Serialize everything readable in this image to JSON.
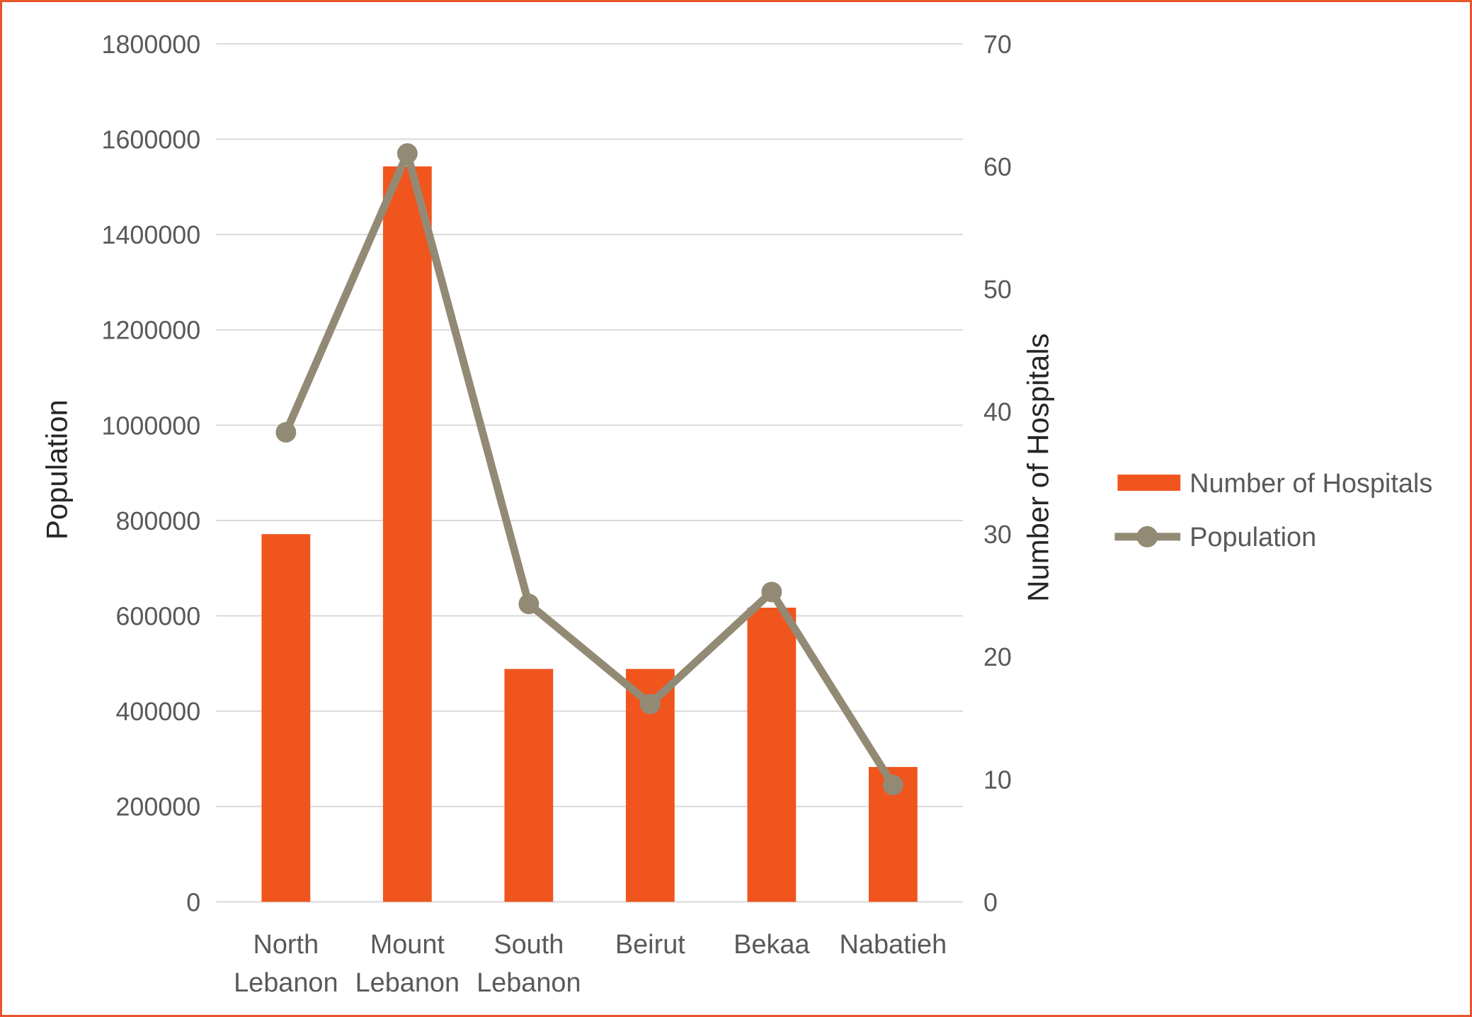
{
  "window": {
    "border_color": "#E8542B",
    "background": "#FFFFFF"
  },
  "chart_data": {
    "type": "bar",
    "combo_type": "bar+line dual-axis",
    "title": "",
    "categories": [
      "North Lebanon",
      "Mount Lebanon",
      "South Lebanon",
      "Beirut",
      "Bekaa",
      "Nabatieh"
    ],
    "category_label_lines": [
      [
        "North",
        "Lebanon"
      ],
      [
        "Mount",
        "Lebanon"
      ],
      [
        "South",
        "Lebanon"
      ],
      [
        "Beirut"
      ],
      [
        "Bekaa"
      ],
      [
        "Nabatieh"
      ]
    ],
    "series": [
      {
        "name": "Number of Hospitals",
        "type": "bar",
        "axis": "right",
        "color": "#F0551E",
        "values": [
          30,
          60,
          19,
          19,
          24,
          11
        ]
      },
      {
        "name": "Population",
        "type": "line",
        "axis": "left",
        "color": "#938A75",
        "values": [
          985000,
          1570000,
          625000,
          415000,
          650000,
          245000
        ]
      }
    ],
    "left_axis": {
      "label": "Population",
      "min": 0,
      "max": 1800000,
      "step": 200000,
      "ticks": [
        "0",
        "200000",
        "400000",
        "600000",
        "800000",
        "1000000",
        "1200000",
        "1400000",
        "1600000",
        "1800000"
      ]
    },
    "right_axis": {
      "label": "Number of Hospitals",
      "min": 0,
      "max": 70,
      "step": 10,
      "ticks": [
        "0",
        "10",
        "20",
        "30",
        "40",
        "50",
        "60",
        "70"
      ]
    },
    "legend": {
      "position": "right",
      "items": [
        {
          "label": "Number of Hospitals",
          "marker": "bar-swatch",
          "color": "#F0551E"
        },
        {
          "label": "Population",
          "marker": "line-marker",
          "color": "#938A75"
        }
      ]
    },
    "grid": {
      "horizontal": true,
      "vertical": false,
      "color": "#D9D9D9"
    },
    "styles": {
      "bar_color": "#F0551E",
      "line_color": "#938A75",
      "tick_text_color": "#595959",
      "axis_title_color": "#262626",
      "gridline_color": "#D9D9D9"
    }
  }
}
